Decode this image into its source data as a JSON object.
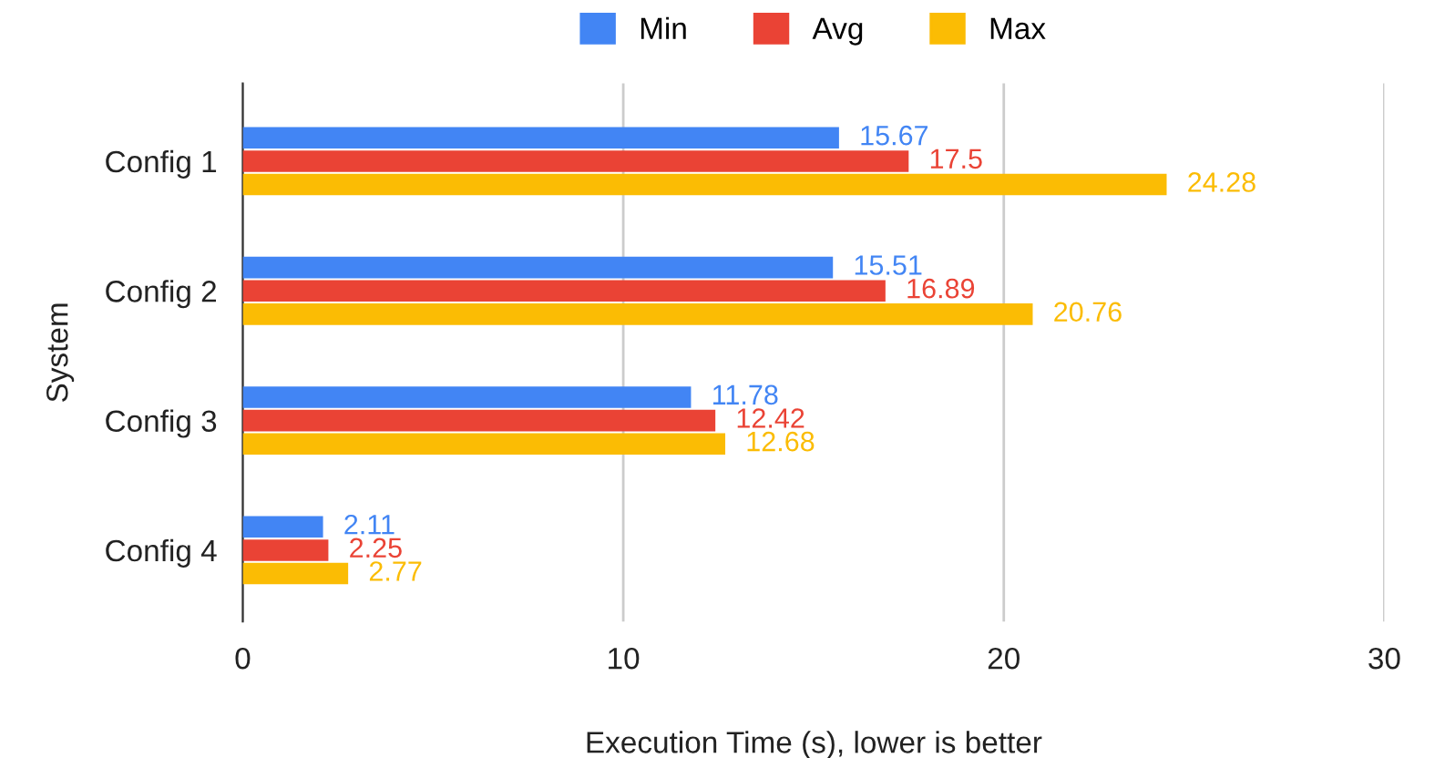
{
  "chart_data": {
    "type": "bar",
    "orientation": "horizontal",
    "xlabel": "Execution Time (s), lower is better",
    "ylabel": "System",
    "categories": [
      "Config 1",
      "Config 2",
      "Config 3",
      "Config 4"
    ],
    "series": [
      {
        "name": "Min",
        "color": "#4285f4",
        "values": [
          15.67,
          15.51,
          11.78,
          2.11
        ]
      },
      {
        "name": "Avg",
        "color": "#ea4335",
        "values": [
          17.5,
          16.89,
          12.42,
          2.25
        ]
      },
      {
        "name": "Max",
        "color": "#fbbc04",
        "values": [
          24.28,
          20.76,
          12.68,
          2.77
        ]
      }
    ],
    "xlim": [
      0,
      30
    ],
    "xticks": [
      0,
      10,
      20,
      30
    ],
    "grid": "x",
    "legend": "top",
    "data_labels": true
  }
}
